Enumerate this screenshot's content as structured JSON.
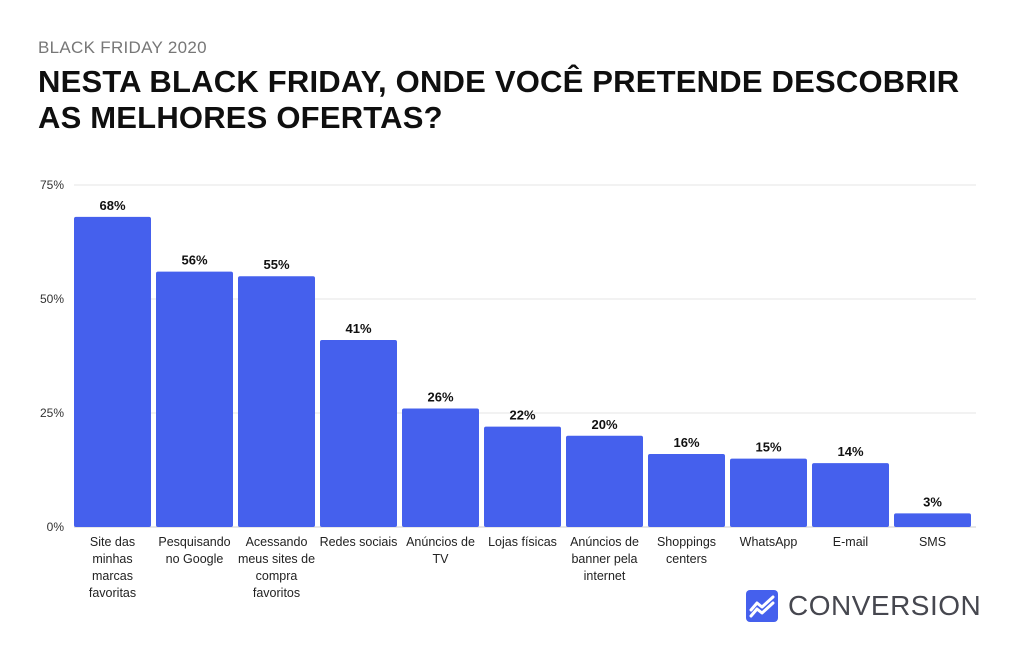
{
  "header": {
    "overline": "BLACK FRIDAY 2020",
    "title": "NESTA BLACK FRIDAY, ONDE VOCÊ PRETENDE DESCOBRIR AS MELHORES OFERTAS?"
  },
  "brand": {
    "name": "CONVERSION",
    "icon": "chart-line-logo-icon",
    "color": "#4560ed"
  },
  "chart_data": {
    "type": "bar",
    "categories": [
      "Site das minhas marcas favoritas",
      "Pesquisando no Google",
      "Acessando meus sites de compra favoritos",
      "Redes sociais",
      "Anúncios de TV",
      "Lojas físicas",
      "Anúncios de banner pela internet",
      "Shoppings centers",
      "WhatsApp",
      "E-mail",
      "SMS"
    ],
    "category_lines": [
      [
        "Site das",
        "minhas",
        "marcas",
        "favoritas"
      ],
      [
        "Pesquisando",
        "no Google"
      ],
      [
        "Acessando",
        "meus sites de",
        "compra",
        "favoritos"
      ],
      [
        "Redes sociais"
      ],
      [
        "Anúncios de",
        "TV"
      ],
      [
        "Lojas físicas"
      ],
      [
        "Anúncios de",
        "banner pela",
        "internet"
      ],
      [
        "Shoppings",
        "centers"
      ],
      [
        "WhatsApp"
      ],
      [
        "E-mail"
      ],
      [
        "SMS"
      ]
    ],
    "values": [
      68,
      56,
      55,
      41,
      26,
      22,
      20,
      16,
      15,
      14,
      3
    ],
    "value_labels": [
      "68%",
      "56%",
      "55%",
      "41%",
      "26%",
      "22%",
      "20%",
      "16%",
      "15%",
      "14%",
      "3%"
    ],
    "ylim": [
      0,
      75
    ],
    "yticks": [
      0,
      25,
      50,
      75
    ],
    "ytick_labels": [
      "0%",
      "25%",
      "50%",
      "75%"
    ],
    "grid": true,
    "bar_color": "#4560ed",
    "title": "",
    "xlabel": "",
    "ylabel": ""
  }
}
